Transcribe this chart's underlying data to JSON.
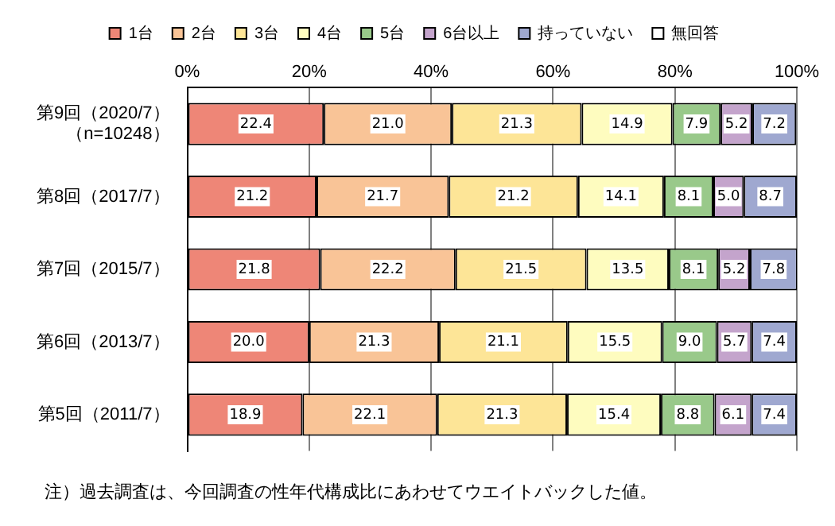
{
  "chart_data": {
    "type": "bar",
    "orientation": "horizontal",
    "stacked": true,
    "grid": "x",
    "legend": "top",
    "categories": [
      "第9回（2020/7）（n=10248）",
      "第8回（2017/7）",
      "第7回（2015/7）",
      "第6回（2013/7）",
      "第5回（2011/7）"
    ],
    "xlim": [
      0,
      100
    ],
    "xticks": [
      {
        "value": 0,
        "label": "0%"
      },
      {
        "value": 20,
        "label": "20%"
      },
      {
        "value": 40,
        "label": "40%"
      },
      {
        "value": 60,
        "label": "60%"
      },
      {
        "value": 80,
        "label": "80%"
      },
      {
        "value": 100,
        "label": "100%"
      }
    ],
    "series": [
      {
        "name": "1台",
        "color": "#ee8677",
        "values": [
          22.4,
          21.2,
          21.8,
          20.0,
          18.9
        ],
        "value_labels": [
          "22.4",
          "21.2",
          "21.8",
          "20.0",
          "18.9"
        ]
      },
      {
        "name": "2台",
        "color": "#f9c497",
        "values": [
          21.0,
          21.7,
          22.2,
          21.3,
          22.1
        ],
        "value_labels": [
          "21.0",
          "21.7",
          "22.2",
          "21.3",
          "22.1"
        ]
      },
      {
        "name": "3台",
        "color": "#fde597",
        "values": [
          21.3,
          21.2,
          21.5,
          21.1,
          21.3
        ],
        "value_labels": [
          "21.3",
          "21.2",
          "21.5",
          "21.1",
          "21.3"
        ]
      },
      {
        "name": "4台",
        "color": "#fefcbf",
        "values": [
          14.9,
          14.1,
          13.5,
          15.5,
          15.4
        ],
        "value_labels": [
          "14.9",
          "14.1",
          "13.5",
          "15.5",
          "15.4"
        ]
      },
      {
        "name": "5台",
        "color": "#99c98a",
        "values": [
          7.9,
          8.1,
          8.1,
          9.0,
          8.8
        ],
        "value_labels": [
          "7.9",
          "8.1",
          "8.1",
          "9.0",
          "8.8"
        ]
      },
      {
        "name": "6台以上",
        "color": "#c4a4cc",
        "values": [
          5.2,
          5.0,
          5.2,
          5.7,
          6.1
        ],
        "value_labels": [
          "5.2",
          "5.0",
          "5.2",
          "5.7",
          "6.1"
        ]
      },
      {
        "name": "持っていない",
        "color": "#9fa8d0",
        "values": [
          7.2,
          8.7,
          7.8,
          7.4,
          7.4
        ],
        "value_labels": [
          "7.2",
          "8.7",
          "7.8",
          "7.4",
          "7.4"
        ]
      },
      {
        "name": "無回答",
        "color": "#ffffff",
        "values": [
          null,
          null,
          null,
          null,
          null
        ]
      }
    ],
    "annotations": [
      "注）過去調査は、今回調査の性年代構成比にあわせてウエイトバックした値。"
    ]
  }
}
